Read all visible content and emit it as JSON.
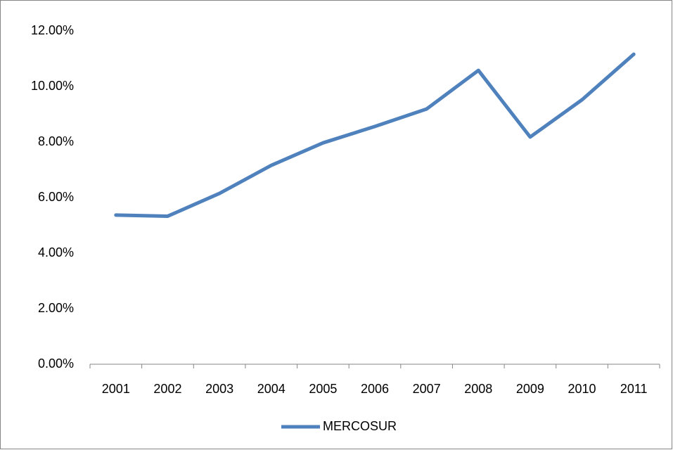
{
  "chart_data": {
    "type": "line",
    "categories": [
      "2001",
      "2002",
      "2003",
      "2004",
      "2005",
      "2006",
      "2007",
      "2008",
      "2009",
      "2010",
      "2011"
    ],
    "series": [
      {
        "name": "MERCOSUR",
        "color": "#4f81bd",
        "values": [
          5.37,
          5.33,
          6.15,
          7.16,
          7.97,
          8.56,
          9.19,
          10.58,
          8.18,
          9.52,
          11.16
        ]
      }
    ],
    "ylim": [
      0,
      12
    ],
    "yticks": [
      {
        "value": 0,
        "label": "0.00%"
      },
      {
        "value": 2,
        "label": "2.00%"
      },
      {
        "value": 4,
        "label": "4.00%"
      },
      {
        "value": 6,
        "label": "6.00%"
      },
      {
        "value": 8,
        "label": "8.00%"
      },
      {
        "value": 10,
        "label": "10.00%"
      },
      {
        "value": 12,
        "label": "12.00%"
      }
    ],
    "grid": false,
    "legend": "bottom"
  }
}
